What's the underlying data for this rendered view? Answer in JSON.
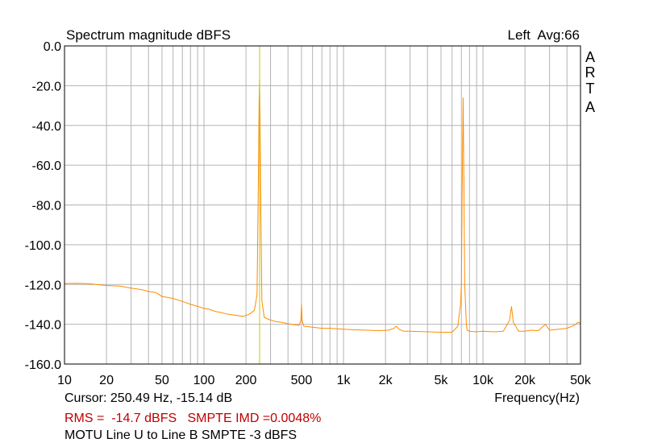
{
  "header": {
    "title": "Spectrum magnitude dBFS",
    "channel_info": "Left  Avg:66",
    "side_label": [
      "A",
      "R",
      "T",
      "A"
    ]
  },
  "footer": {
    "cursor_text": "Cursor: 250.49 Hz, -15.14 dB",
    "measurement_text": "RMS =  -14.7 dBFS   SMPTE IMD =0.0048%",
    "description": "MOTU Line U to Line B SMPTE -3 dBFS"
  },
  "colors": {
    "trace": "#ff8c00",
    "cursor": "#c8c800",
    "grid": "#b4b4b4",
    "measurement_text": "#c00000"
  },
  "chart_data": {
    "type": "line",
    "title": "Spectrum magnitude dBFS",
    "xlabel": "Frequency(Hz)",
    "ylabel": "",
    "x_scale": "log",
    "xlim": [
      10,
      50000
    ],
    "ylim": [
      -160,
      0
    ],
    "grid": true,
    "x_tick_labels": [
      "10",
      "20",
      "50",
      "100",
      "200",
      "500",
      "1k",
      "2k",
      "5k",
      "10k",
      "20k",
      "50k"
    ],
    "x_tick_values": [
      10,
      20,
      50,
      100,
      200,
      500,
      1000,
      2000,
      5000,
      10000,
      20000,
      50000
    ],
    "y_tick_labels": [
      "0.0",
      "-20.0",
      "-40.0",
      "-60.0",
      "-80.0",
      "-100.0",
      "-120.0",
      "-140.0",
      "-160.0"
    ],
    "y_tick_values": [
      0,
      -20,
      -40,
      -60,
      -80,
      -100,
      -120,
      -140,
      -160
    ],
    "cursor": {
      "frequency_hz": 250.49,
      "level_db": -15.14
    },
    "series": [
      {
        "name": "",
        "x": [
          10,
          12,
          15,
          18,
          20,
          25,
          30,
          35,
          40,
          45,
          50,
          60,
          70,
          80,
          90,
          100,
          110,
          120,
          130,
          150,
          170,
          190,
          210,
          230,
          240,
          245,
          248,
          250,
          252,
          255,
          260,
          270,
          290,
          320,
          360,
          420,
          480,
          495,
          500,
          505,
          520,
          600,
          700,
          800,
          1000,
          1200,
          1500,
          1800,
          2100,
          2300,
          2400,
          2500,
          2700,
          3000,
          4000,
          5000,
          6000,
          6600,
          6900,
          7000,
          7100,
          7200,
          7300,
          7400,
          7500,
          7600,
          7700,
          8000,
          9000,
          10000,
          12000,
          14000,
          15500,
          16000,
          16500,
          18000,
          20000,
          22000,
          25000,
          28000,
          30000,
          35000,
          40000,
          45000,
          48000,
          50000
        ],
        "y": [
          -119.5,
          -119.4,
          -119.6,
          -120.2,
          -120.5,
          -120.8,
          -121.8,
          -122.5,
          -123.5,
          -124.0,
          -126.0,
          -127.0,
          -128.5,
          -130.0,
          -131.0,
          -132.0,
          -132.5,
          -133.5,
          -134.0,
          -135.0,
          -135.5,
          -136.0,
          -135.0,
          -133.0,
          -125.0,
          -70.0,
          -30.0,
          -17.0,
          -35.0,
          -78.0,
          -128.0,
          -136.5,
          -137.5,
          -138.5,
          -139.0,
          -140.0,
          -140.5,
          -138.0,
          -130.0,
          -138.0,
          -141.0,
          -141.5,
          -142.0,
          -142.0,
          -142.5,
          -142.8,
          -143.0,
          -143.2,
          -143.0,
          -142.0,
          -141.0,
          -142.5,
          -143.5,
          -143.5,
          -143.8,
          -144.0,
          -144.0,
          -141.0,
          -130.0,
          -120.0,
          -70.0,
          -26.0,
          -70.0,
          -120.0,
          -130.0,
          -140.0,
          -143.0,
          -143.5,
          -143.8,
          -143.5,
          -143.8,
          -143.5,
          -138.0,
          -131.0,
          -139.0,
          -143.5,
          -143.5,
          -143.0,
          -143.2,
          -140.0,
          -143.0,
          -142.5,
          -142.0,
          -140.5,
          -139.0,
          -139.5
        ]
      }
    ]
  }
}
